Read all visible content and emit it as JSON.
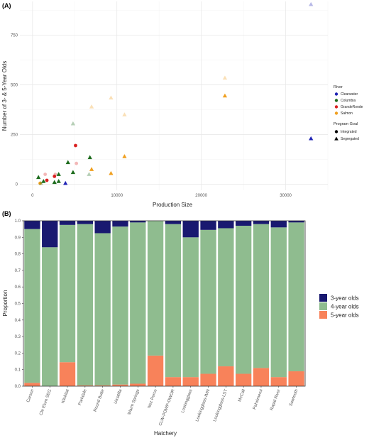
{
  "chart_data": [
    {
      "panel_label": "(A)",
      "type": "scatter",
      "xlabel": "Production Size",
      "ylabel": "Number of 3- & 5-Year Olds",
      "xlim": [
        -1500,
        35000
      ],
      "ylim": [
        -30,
        920
      ],
      "x_ticks": [
        "0",
        "10000",
        "20000",
        "30000"
      ],
      "x_tick_values": [
        0,
        10000,
        20000,
        30000
      ],
      "y_ticks": [
        "0",
        "250",
        "500",
        "750"
      ],
      "y_tick_values": [
        0,
        250,
        500,
        750
      ],
      "grid": true,
      "legend_position": "right",
      "legend_color": {
        "title": "River",
        "items": [
          {
            "name": "Clearwater",
            "color": "#1f23b4"
          },
          {
            "name": "Columbia",
            "color": "#1c6b1c"
          },
          {
            "name": "GrandeRonde",
            "color": "#d92020"
          },
          {
            "name": "Salmon",
            "color": "#f0a020"
          }
        ]
      },
      "legend_shape": {
        "title": "Program Goal",
        "items": [
          {
            "name": "Integrated",
            "shape": "circle"
          },
          {
            "name": "Segregated",
            "shape": "triangle"
          }
        ]
      },
      "points": [
        {
          "x": 33000,
          "y": 905,
          "river": "Clearwater",
          "goal": "Segregated",
          "faded": true
        },
        {
          "x": 33000,
          "y": 230,
          "river": "Clearwater",
          "goal": "Segregated",
          "faded": false
        },
        {
          "x": 3900,
          "y": 5,
          "river": "Clearwater",
          "goal": "Segregated",
          "faded": false
        },
        {
          "x": 22800,
          "y": 535,
          "river": "Salmon",
          "goal": "Segregated",
          "faded": true
        },
        {
          "x": 22800,
          "y": 445,
          "river": "Salmon",
          "goal": "Segregated",
          "faded": false
        },
        {
          "x": 7000,
          "y": 390,
          "river": "Salmon",
          "goal": "Segregated",
          "faded": true
        },
        {
          "x": 9300,
          "y": 435,
          "river": "Salmon",
          "goal": "Segregated",
          "faded": true
        },
        {
          "x": 10900,
          "y": 350,
          "river": "Salmon",
          "goal": "Segregated",
          "faded": true
        },
        {
          "x": 10900,
          "y": 140,
          "river": "Salmon",
          "goal": "Segregated",
          "faded": false
        },
        {
          "x": 7000,
          "y": 75,
          "river": "Salmon",
          "goal": "Segregated",
          "faded": false
        },
        {
          "x": 9300,
          "y": 55,
          "river": "Salmon",
          "goal": "Segregated",
          "faded": false
        },
        {
          "x": 900,
          "y": 5,
          "river": "Salmon",
          "goal": "Integrated",
          "faded": false
        },
        {
          "x": 4800,
          "y": 305,
          "river": "Columbia",
          "goal": "Segregated",
          "faded": true
        },
        {
          "x": 5100,
          "y": 195,
          "river": "GrandeRonde",
          "goal": "Integrated",
          "faded": false
        },
        {
          "x": 4200,
          "y": 110,
          "river": "Columbia",
          "goal": "Segregated",
          "faded": false
        },
        {
          "x": 6800,
          "y": 135,
          "river": "Columbia",
          "goal": "Segregated",
          "faded": false
        },
        {
          "x": 5200,
          "y": 105,
          "river": "GrandeRonde",
          "goal": "Integrated",
          "faded": true
        },
        {
          "x": 4800,
          "y": 60,
          "river": "Columbia",
          "goal": "Segregated",
          "faded": false
        },
        {
          "x": 6700,
          "y": 50,
          "river": "Columbia",
          "goal": "Segregated",
          "faded": true
        },
        {
          "x": 2700,
          "y": 50,
          "river": "GrandeRonde",
          "goal": "Integrated",
          "faded": true
        },
        {
          "x": 2600,
          "y": 40,
          "river": "GrandeRonde",
          "goal": "Integrated",
          "faded": false
        },
        {
          "x": 3100,
          "y": 50,
          "river": "Columbia",
          "goal": "Segregated",
          "faded": false
        },
        {
          "x": 1500,
          "y": 50,
          "river": "GrandeRonde",
          "goal": "Integrated",
          "faded": true
        },
        {
          "x": 1700,
          "y": 20,
          "river": "GrandeRonde",
          "goal": "Integrated",
          "faded": false
        },
        {
          "x": 700,
          "y": 35,
          "river": "Columbia",
          "goal": "Segregated",
          "faded": false
        },
        {
          "x": 1300,
          "y": 15,
          "river": "Columbia",
          "goal": "Segregated",
          "faded": false
        },
        {
          "x": 2600,
          "y": 10,
          "river": "Columbia",
          "goal": "Segregated",
          "faded": false
        },
        {
          "x": 3100,
          "y": 15,
          "river": "Columbia",
          "goal": "Segregated",
          "faded": false
        },
        {
          "x": 1000,
          "y": 5,
          "river": "Columbia",
          "goal": "Segregated",
          "faded": true
        }
      ]
    },
    {
      "panel_label": "(B)",
      "type": "bar",
      "stacked": true,
      "xlabel": "Hatchery",
      "ylabel": "Proportion",
      "ylim": [
        0,
        1
      ],
      "y_ticks": [
        "0.0",
        "0.1",
        "0.2",
        "0.3",
        "0.4",
        "0.5",
        "0.6",
        "0.7",
        "0.8",
        "0.9",
        "1.0"
      ],
      "y_tick_values": [
        0,
        0.1,
        0.2,
        0.3,
        0.4,
        0.5,
        0.6,
        0.7,
        0.8,
        0.9,
        1.0
      ],
      "legend_position": "right",
      "categories": [
        "Carson",
        "Cle Elum SEG",
        "Klickitat",
        "Parkdale",
        "Round Butte",
        "Umatilla",
        "Warm Springs",
        "Nez Perce",
        "CLW-POWP-OWOR",
        "Lookingglass",
        "Lookingglass-IMN",
        "Lookingglass-LST",
        "McCall",
        "Pahsimeroi",
        "Rapid River",
        "Sawtooth"
      ],
      "series": [
        {
          "name": "5-year olds",
          "color": "#f8825a",
          "values": [
            0.02,
            0.0,
            0.145,
            0.005,
            0.005,
            0.01,
            0.015,
            0.185,
            0.055,
            0.055,
            0.075,
            0.12,
            0.075,
            0.11,
            0.055,
            0.09
          ]
        },
        {
          "name": "4-year olds",
          "color": "#8fbc8f",
          "values": [
            0.93,
            0.84,
            0.83,
            0.975,
            0.92,
            0.955,
            0.975,
            0.815,
            0.925,
            0.845,
            0.87,
            0.835,
            0.895,
            0.87,
            0.905,
            0.9
          ]
        },
        {
          "name": "3-year olds",
          "color": "#191970",
          "values": [
            0.05,
            0.16,
            0.025,
            0.02,
            0.075,
            0.035,
            0.01,
            0.0,
            0.02,
            0.1,
            0.055,
            0.045,
            0.03,
            0.02,
            0.04,
            0.01
          ]
        }
      ],
      "legend_order": [
        "3-year olds",
        "4-year olds",
        "5-year olds"
      ]
    }
  ]
}
